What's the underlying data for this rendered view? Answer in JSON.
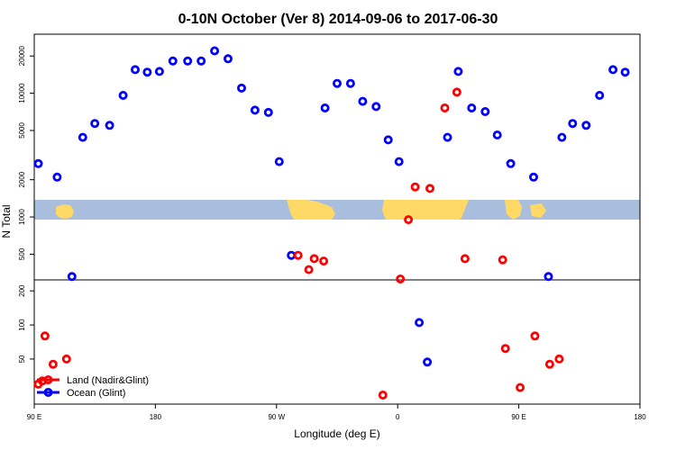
{
  "chart_data": {
    "type": "scatter",
    "title": "0-10N October (Ver 8)   2014-09-06 to 2017-06-30",
    "xlabel": "Longitude (deg E)",
    "ylabel": "N Total",
    "x_tick_labels": [
      "90 E",
      "180",
      "90 W",
      "0",
      "90 E",
      "180"
    ],
    "x_ticks": [
      90,
      180,
      270,
      360,
      450,
      540
    ],
    "xlim": [
      90,
      540
    ],
    "y_scale": "log",
    "upper_panel": {
      "ylim": [
        310,
        30000
      ],
      "y_ticks": [
        500,
        1000,
        2000,
        5000,
        10000,
        20000
      ],
      "y_tick_labels": [
        "500",
        "1000",
        "2000",
        "5000",
        "10000",
        "20000"
      ],
      "background_map": true
    },
    "lower_panel": {
      "ylim": [
        20,
        250
      ],
      "y_ticks": [
        50,
        100,
        200
      ],
      "y_tick_labels": [
        "50",
        "100",
        "200"
      ]
    },
    "legend": {
      "position": "bottom-left",
      "entries": [
        "Land (Nadir&Glint)",
        "Ocean (Glint)"
      ]
    },
    "colors": {
      "land": "#ff0000",
      "ocean": "#0000ff",
      "map_ocean": "#a8bedc",
      "map_land": "#ffd966"
    },
    "series": [
      {
        "name": "Land (Nadir&Glint)",
        "color": "#ff0000",
        "points": [
          [
            93,
            30
          ],
          [
            96,
            32
          ],
          [
            98,
            80
          ],
          [
            104,
            45
          ],
          [
            114,
            50
          ],
          [
            286,
            490
          ],
          [
            298,
            460
          ],
          [
            294,
            375
          ],
          [
            305,
            440
          ],
          [
            349,
            24
          ],
          [
            362,
            315
          ],
          [
            368,
            950
          ],
          [
            373,
            1750
          ],
          [
            384,
            1700
          ],
          [
            395,
            7600
          ],
          [
            404,
            10200
          ],
          [
            410,
            460
          ],
          [
            438,
            450
          ],
          [
            440,
            62
          ],
          [
            451,
            28
          ],
          [
            462,
            80
          ],
          [
            473,
            45
          ],
          [
            480,
            50
          ]
        ]
      },
      {
        "name": "Ocean (Glint)",
        "color": "#0000ff",
        "points": [
          [
            93,
            2700
          ],
          [
            107,
            2100
          ],
          [
            118,
            330
          ],
          [
            126,
            4400
          ],
          [
            135,
            5700
          ],
          [
            146,
            5500
          ],
          [
            156,
            9600
          ],
          [
            165,
            15500
          ],
          [
            174,
            14800
          ],
          [
            183,
            15000
          ],
          [
            193,
            18200
          ],
          [
            204,
            18200
          ],
          [
            214,
            18200
          ],
          [
            224,
            22000
          ],
          [
            234,
            19000
          ],
          [
            244,
            11000
          ],
          [
            254,
            7300
          ],
          [
            264,
            7000
          ],
          [
            272,
            2800
          ],
          [
            281,
            490
          ],
          [
            306,
            7600
          ],
          [
            315,
            12000
          ],
          [
            325,
            12000
          ],
          [
            334,
            8600
          ],
          [
            344,
            7800
          ],
          [
            353,
            4200
          ],
          [
            361,
            2800
          ],
          [
            376,
            105
          ],
          [
            382,
            47
          ],
          [
            397,
            4400
          ],
          [
            405,
            15000
          ],
          [
            415,
            7600
          ],
          [
            425,
            7100
          ],
          [
            434,
            4600
          ],
          [
            444,
            2700
          ],
          [
            461,
            2100
          ],
          [
            472,
            330
          ],
          [
            482,
            4400
          ],
          [
            490,
            5700
          ],
          [
            500,
            5500
          ],
          [
            510,
            9600
          ],
          [
            520,
            15500
          ],
          [
            529,
            14800
          ]
        ]
      }
    ]
  }
}
